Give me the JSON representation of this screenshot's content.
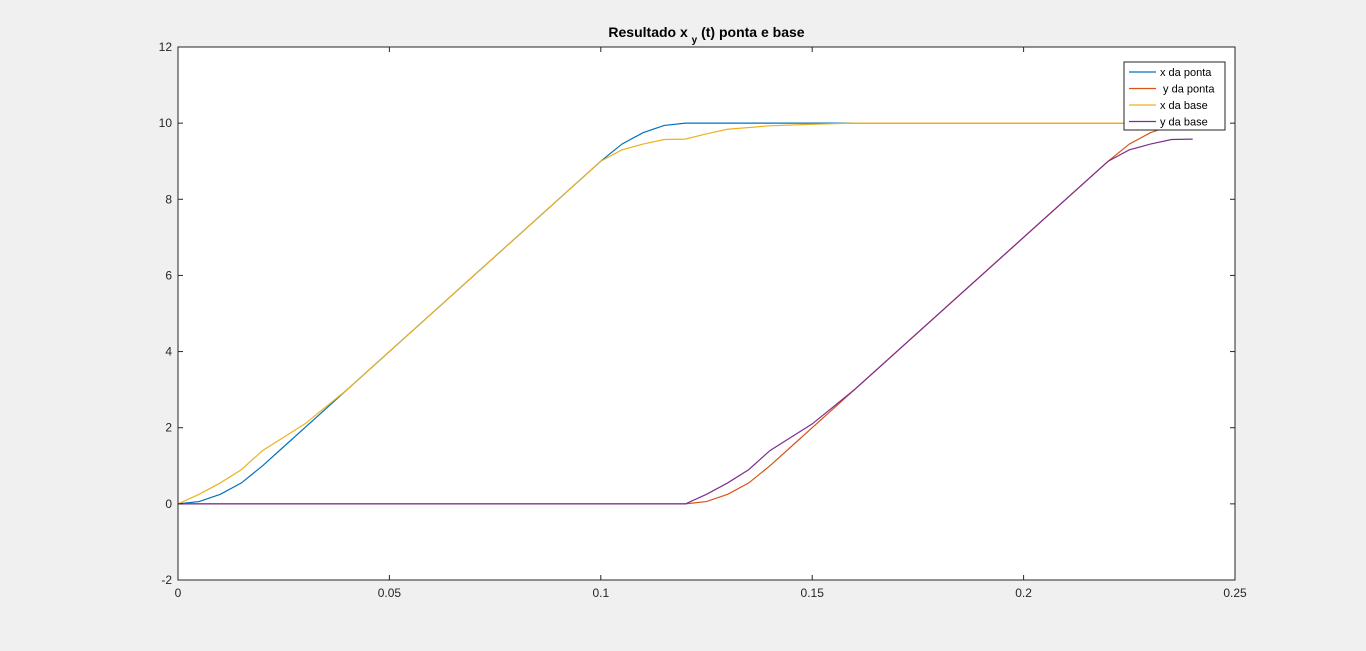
{
  "chart_data": {
    "type": "line",
    "title": {
      "main": "Resultado x",
      "sub": "y",
      "rest": "(t) ponta e base"
    },
    "xlim": [
      0,
      0.25
    ],
    "ylim": [
      -2,
      12
    ],
    "xticks": [
      0,
      0.05,
      0.1,
      0.15,
      0.2,
      0.25
    ],
    "xtick_labels": [
      "0",
      "0.05",
      "0.1",
      "0.15",
      "0.2",
      "0.25"
    ],
    "yticks": [
      -2,
      0,
      2,
      4,
      6,
      8,
      10,
      12
    ],
    "ytick_labels": [
      "-2",
      "0",
      "2",
      "4",
      "6",
      "8",
      "10",
      "12"
    ],
    "grid": false,
    "legend_position": "top-right",
    "series": [
      {
        "name": "x da ponta",
        "color": "#0072bd",
        "points": [
          [
            0,
            0
          ],
          [
            0.005,
            0.06
          ],
          [
            0.01,
            0.25
          ],
          [
            0.015,
            0.55
          ],
          [
            0.02,
            1.0
          ],
          [
            0.025,
            1.5
          ],
          [
            0.03,
            2.0
          ],
          [
            0.05,
            4.0
          ],
          [
            0.1,
            9.0
          ],
          [
            0.105,
            9.45
          ],
          [
            0.11,
            9.75
          ],
          [
            0.115,
            9.94
          ],
          [
            0.12,
            10.0
          ],
          [
            0.16,
            10.0
          ],
          [
            0.24,
            10.0
          ]
        ]
      },
      {
        "name": " y da ponta",
        "color": "#d95319",
        "points": [
          [
            0,
            0
          ],
          [
            0.12,
            0
          ],
          [
            0.125,
            0.06
          ],
          [
            0.13,
            0.25
          ],
          [
            0.135,
            0.55
          ],
          [
            0.14,
            1.0
          ],
          [
            0.145,
            1.5
          ],
          [
            0.15,
            2.0
          ],
          [
            0.17,
            4.0
          ],
          [
            0.22,
            9.0
          ],
          [
            0.225,
            9.45
          ],
          [
            0.23,
            9.75
          ],
          [
            0.235,
            9.94
          ],
          [
            0.24,
            10.0
          ]
        ]
      },
      {
        "name": "x da base",
        "color": "#edb120",
        "points": [
          [
            0,
            0
          ],
          [
            0.005,
            0.25
          ],
          [
            0.01,
            0.55
          ],
          [
            0.015,
            0.9
          ],
          [
            0.02,
            1.4
          ],
          [
            0.025,
            1.75
          ],
          [
            0.03,
            2.1
          ],
          [
            0.04,
            3.0
          ],
          [
            0.05,
            4.0
          ],
          [
            0.1,
            9.0
          ],
          [
            0.105,
            9.3
          ],
          [
            0.11,
            9.45
          ],
          [
            0.115,
            9.57
          ],
          [
            0.12,
            9.58
          ],
          [
            0.125,
            9.72
          ],
          [
            0.13,
            9.84
          ],
          [
            0.14,
            9.93
          ],
          [
            0.15,
            9.97
          ],
          [
            0.16,
            10.0
          ],
          [
            0.24,
            10.0
          ]
        ]
      },
      {
        "name": "y da base",
        "color": "#7e2f8e",
        "points": [
          [
            0,
            0
          ],
          [
            0.12,
            0
          ],
          [
            0.125,
            0.25
          ],
          [
            0.13,
            0.55
          ],
          [
            0.135,
            0.9
          ],
          [
            0.14,
            1.4
          ],
          [
            0.145,
            1.75
          ],
          [
            0.15,
            2.1
          ],
          [
            0.16,
            3.0
          ],
          [
            0.17,
            4.0
          ],
          [
            0.22,
            9.0
          ],
          [
            0.225,
            9.3
          ],
          [
            0.23,
            9.45
          ],
          [
            0.235,
            9.57
          ],
          [
            0.24,
            9.58
          ]
        ]
      }
    ]
  }
}
